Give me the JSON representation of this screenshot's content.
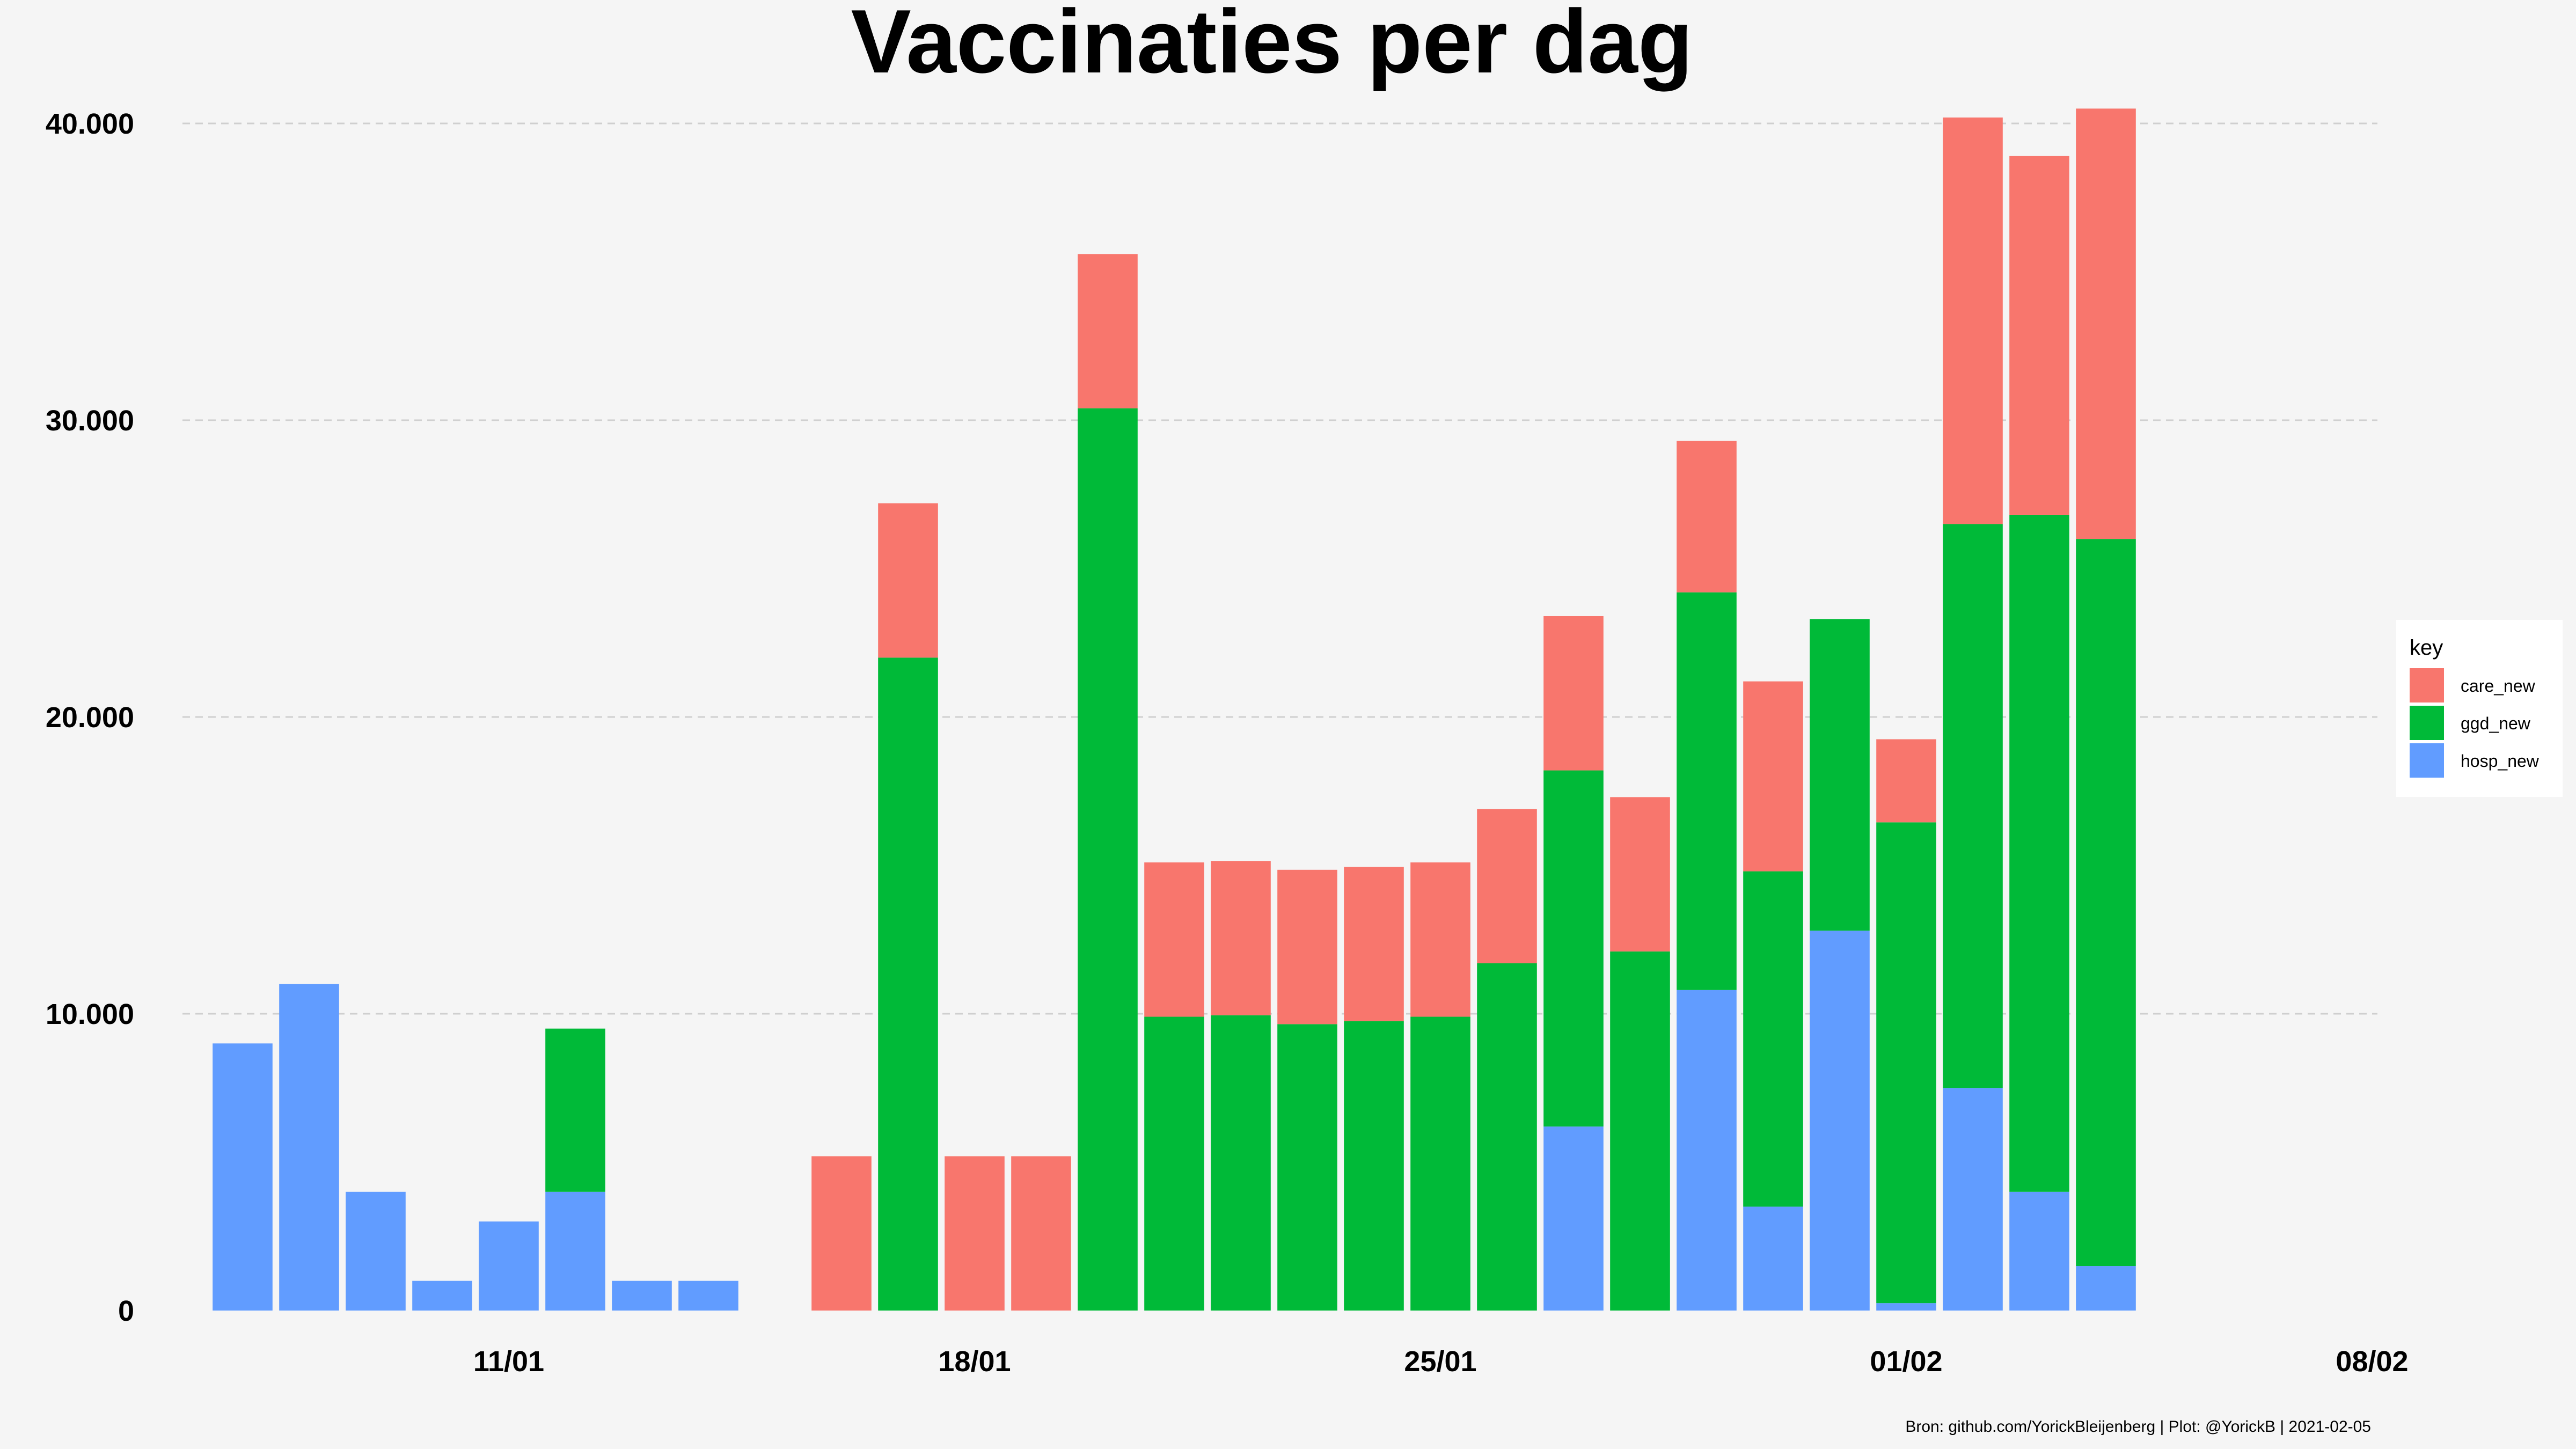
{
  "chart_data": {
    "type": "bar",
    "stacked": true,
    "title": "Vaccinaties per dag",
    "caption": "Bron: github.com/YorickBleijenberg | Plot: @YorickB  |  2021-02-05",
    "xlabel": "",
    "ylabel": "",
    "ylim": [
      0,
      40000
    ],
    "y_ticks": [
      0,
      10000,
      20000,
      30000,
      40000
    ],
    "y_tick_labels": [
      "0",
      "10.000",
      "20.000",
      "30.000",
      "40.000"
    ],
    "x_ticks": [
      "2021-01-11",
      "2021-01-18",
      "2021-01-25",
      "2021-02-01",
      "2021-02-08"
    ],
    "x_tick_labels": [
      "11/01",
      "18/01",
      "25/01",
      "01/02",
      "08/02"
    ],
    "x_range": [
      "2021-01-06",
      "2021-02-08"
    ],
    "grid": "horizontal dashed",
    "legend": {
      "title": "key",
      "placement": "right",
      "entries": [
        "care_new",
        "ggd_new",
        "hosp_new"
      ]
    },
    "colors": {
      "care_new": "#f8766d",
      "ggd_new": "#00ba38",
      "hosp_new": "#619cff"
    },
    "x": [
      "2021-01-07",
      "2021-01-08",
      "2021-01-09",
      "2021-01-10",
      "2021-01-11",
      "2021-01-12",
      "2021-01-13",
      "2021-01-14",
      "2021-01-15",
      "2021-01-16",
      "2021-01-17",
      "2021-01-18",
      "2021-01-19",
      "2021-01-20",
      "2021-01-21",
      "2021-01-22",
      "2021-01-23",
      "2021-01-24",
      "2021-01-25",
      "2021-01-26",
      "2021-01-27",
      "2021-01-28",
      "2021-01-29",
      "2021-01-30",
      "2021-01-31",
      "2021-02-01",
      "2021-02-02",
      "2021-02-03",
      "2021-02-04"
    ],
    "series": [
      {
        "name": "hosp_new",
        "values": [
          9000,
          11000,
          4000,
          1000,
          3000,
          4000,
          1000,
          1000,
          0,
          0,
          0,
          0,
          0,
          0,
          0,
          0,
          0,
          0,
          0,
          0,
          6200,
          0,
          10800,
          3500,
          12800,
          250,
          7500,
          4000,
          1500
        ]
      },
      {
        "name": "ggd_new",
        "values": [
          0,
          0,
          0,
          0,
          0,
          5500,
          0,
          0,
          0,
          0,
          22000,
          0,
          0,
          30400,
          9900,
          9950,
          9650,
          9750,
          9900,
          11700,
          12000,
          12100,
          13400,
          11300,
          10500,
          16200,
          19000,
          22800,
          24500
        ]
      },
      {
        "name": "care_new",
        "values": [
          0,
          0,
          0,
          0,
          0,
          0,
          0,
          0,
          0,
          5200,
          5200,
          5200,
          5200,
          5200,
          5200,
          5200,
          5200,
          5200,
          5200,
          5200,
          5200,
          5200,
          5100,
          6400,
          0,
          2800,
          13700,
          12100,
          14500
        ]
      }
    ]
  }
}
